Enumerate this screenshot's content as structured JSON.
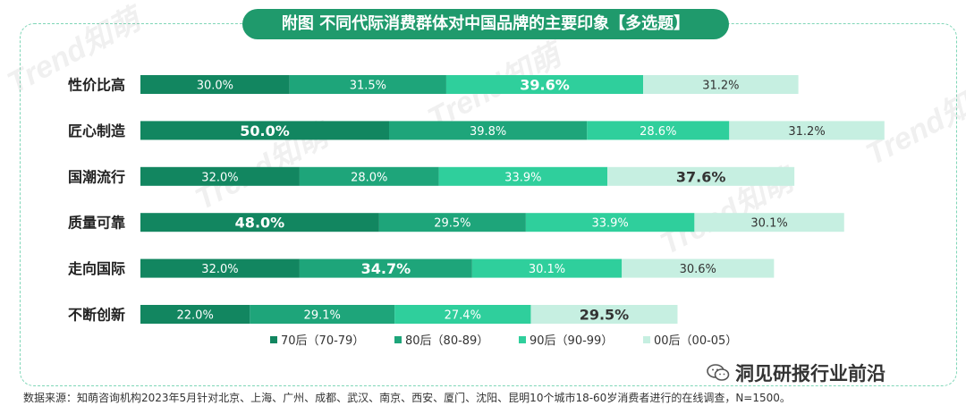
{
  "title": "附图 不同代际消费群体对中国品牌的主要印象【多选题】",
  "source_note": "数据来源：知萌咨询机构2023年5月针对北京、上海、广州、成都、武汉、南京、西安、厦门、沈阳、昆明10个城市18-60岁消费者进行的在线调查，N=1500。",
  "brand_name": "洞见研报行业前沿",
  "watermark_text": "Trend知萌",
  "colors": {
    "s70": "#128660",
    "s80": "#1ea57a",
    "s90": "#2fcf9c",
    "s00": "#c6efe1",
    "frame": "#7fd6b7",
    "title_bg": "#1f9a6c"
  },
  "chart_data": {
    "type": "bar",
    "orientation": "horizontal",
    "stacked": true,
    "title": "附图 不同代际消费群体对中国品牌的主要印象【多选题】",
    "categories": [
      "性价比高",
      "匠心制造",
      "国潮流行",
      "质量可靠",
      "走向国际",
      "不断创新"
    ],
    "series": [
      {
        "name": "70后（70-79）",
        "color": "#128660",
        "values": [
          30.0,
          50.0,
          32.0,
          48.0,
          32.0,
          22.0
        ]
      },
      {
        "name": "80后（80-89）",
        "color": "#1ea57a",
        "values": [
          31.5,
          39.8,
          28.0,
          29.5,
          34.7,
          29.1
        ]
      },
      {
        "name": "90后（90-99）",
        "color": "#2fcf9c",
        "values": [
          39.6,
          28.6,
          33.9,
          33.9,
          30.1,
          27.4
        ]
      },
      {
        "name": "00后（00-05）",
        "color": "#c6efe1",
        "values": [
          31.2,
          31.2,
          37.6,
          30.1,
          30.6,
          29.5
        ]
      }
    ],
    "data_labels": [
      [
        "30.0%",
        "31.5%",
        "39.6%",
        "31.2%"
      ],
      [
        "50.0%",
        "39.8%",
        "28.6%",
        "31.2%"
      ],
      [
        "32.0%",
        "28.0%",
        "33.9%",
        "37.6%"
      ],
      [
        "48.0%",
        "29.5%",
        "33.9%",
        "30.1%"
      ],
      [
        "32.0%",
        "34.7%",
        "30.1%",
        "30.6%"
      ],
      [
        "22.0%",
        "29.1%",
        "27.4%",
        "29.5%"
      ]
    ],
    "emphasized_labels": [
      [
        false,
        false,
        true,
        false
      ],
      [
        true,
        false,
        false,
        false
      ],
      [
        false,
        false,
        false,
        true
      ],
      [
        true,
        false,
        false,
        false
      ],
      [
        false,
        true,
        false,
        false
      ],
      [
        false,
        false,
        false,
        true
      ]
    ],
    "legend_position": "bottom",
    "grid": false
  }
}
